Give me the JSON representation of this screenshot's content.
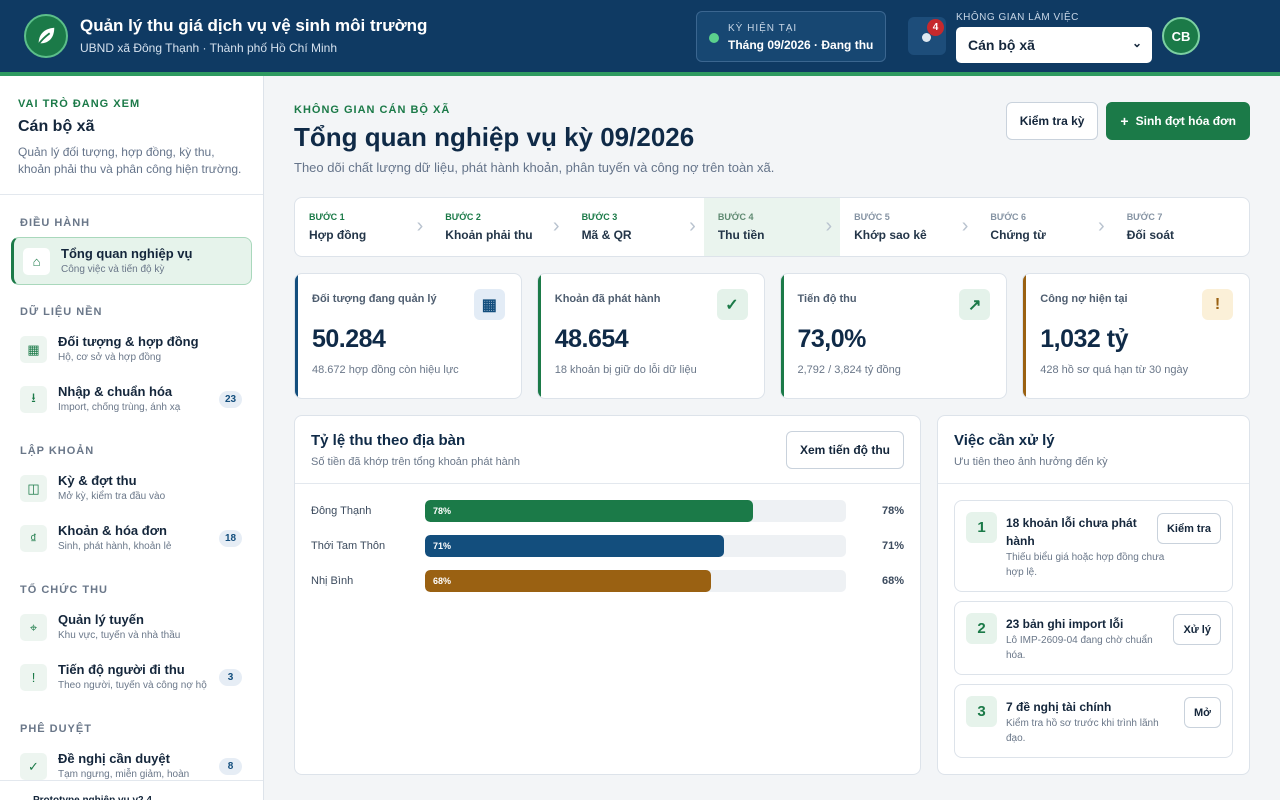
{
  "header": {
    "title": "Quản lý thu giá dịch vụ vệ sinh môi trường",
    "subtitle": "UBND xã Đông Thạnh · Thành phố Hồ Chí Minh",
    "period": {
      "label": "KỲ HIỆN TẠI",
      "value": "Tháng 09/2026 · Đang thu"
    },
    "notifications": 4,
    "workspace": {
      "label": "KHÔNG GIAN LÀM VIỆC",
      "selected": "Cán bộ xã"
    },
    "avatar": "CB"
  },
  "sidebar": {
    "role": {
      "label": "VAI TRÒ ĐANG XEM",
      "name": "Cán bộ xã",
      "description": "Quản lý đối tượng, hợp đồng, kỳ thu, khoản phải thu và phân công hiện trường."
    },
    "sections": [
      {
        "title": "ĐIỀU HÀNH",
        "items": [
          {
            "icon": "⌂",
            "title": "Tổng quan nghiệp vụ",
            "subtitle": "Công việc và tiến độ kỳ",
            "active": true
          }
        ]
      },
      {
        "title": "DỮ LIỆU NỀN",
        "items": [
          {
            "icon": "▦",
            "title": "Đối tượng & hợp đồng",
            "subtitle": "Hộ, cơ sở và hợp đồng"
          },
          {
            "icon": "⭳",
            "title": "Nhập & chuẩn hóa",
            "subtitle": "Import, chống trùng, ánh xạ",
            "badge": 23
          }
        ]
      },
      {
        "title": "LẬP KHOẢN",
        "items": [
          {
            "icon": "◫",
            "title": "Kỳ & đợt thu",
            "subtitle": "Mở kỳ, kiểm tra đầu vào"
          },
          {
            "icon": "₫",
            "title": "Khoản & hóa đơn",
            "subtitle": "Sinh, phát hành, khoản lẻ",
            "badge": 18
          }
        ]
      },
      {
        "title": "TỔ CHỨC THU",
        "items": [
          {
            "icon": "⌖",
            "title": "Quản lý tuyến",
            "subtitle": "Khu vực, tuyến và nhà thầu"
          },
          {
            "icon": "!",
            "title": "Tiến độ người đi thu",
            "subtitle": "Theo người, tuyến và công nợ hộ",
            "badge": 3
          }
        ]
      },
      {
        "title": "PHÊ DUYỆT",
        "items": [
          {
            "icon": "✓",
            "title": "Đề nghị cần duyệt",
            "subtitle": "Tạm ngưng, miễn giảm, hoàn",
            "badge": 8
          }
        ]
      }
    ],
    "footer": "Prototype nghiệp vụ v2.4"
  },
  "main": {
    "eyebrow": "KHÔNG GIAN CÁN BỘ XÃ",
    "title": "Tổng quan nghiệp vụ kỳ 09/2026",
    "subtitle": "Theo dõi chất lượng dữ liệu, phát hành khoản, phân tuyến và công nợ trên toàn xã.",
    "actions": [
      {
        "label": "Kiểm tra kỳ"
      },
      {
        "icon": "+",
        "label": "Sinh đợt hóa đơn",
        "primary": true
      }
    ],
    "steps": [
      {
        "step": "BƯỚC 1",
        "name": "Hợp đồng",
        "state": "done"
      },
      {
        "step": "BƯỚC 2",
        "name": "Khoản phải thu",
        "state": "done"
      },
      {
        "step": "BƯỚC 3",
        "name": "Mã & QR",
        "state": "done"
      },
      {
        "step": "BƯỚC 4",
        "name": "Thu tiền",
        "state": "active"
      },
      {
        "step": "BƯỚC 5",
        "name": "Khớp sao kê",
        "state": "todo"
      },
      {
        "step": "BƯỚC 6",
        "name": "Chứng từ",
        "state": "todo"
      },
      {
        "step": "BƯỚC 7",
        "name": "Đối soát",
        "state": "todo"
      }
    ],
    "kpis": [
      {
        "label": "Đối tượng đang quản lý",
        "value": "50.284",
        "note": "48.672 hợp đồng còn hiệu lực",
        "icon": "▦",
        "color": "#134e7d",
        "icon_bg": "#e3ecf6"
      },
      {
        "label": "Khoản đã phát hành",
        "value": "48.654",
        "note": "18 khoản bị giữ do lỗi dữ liệu",
        "icon": "✓",
        "color": "#1b7a48",
        "icon_bg": "#e4f2ea"
      },
      {
        "label": "Tiến độ thu",
        "value": "73,0%",
        "note": "2,792 / 3,824 tỷ đồng",
        "icon": "↗",
        "color": "#1b7a48",
        "icon_bg": "#e4f2ea"
      },
      {
        "label": "Công nợ hiện tại",
        "value": "1,032 tỷ",
        "note": "428 hồ sơ quá hạn từ 30 ngày",
        "icon": "!",
        "color": "#9a6112",
        "icon_bg": "#fbf0d8"
      }
    ],
    "collection": {
      "title": "Tỷ lệ thu theo địa bàn",
      "subtitle": "Số tiền đã khớp trên tổng khoản phát hành",
      "button": "Xem tiến độ thu",
      "xlim": [
        0,
        100
      ],
      "categories": [
        "Đông Thạnh",
        "Thới Tam Thôn",
        "Nhị Bình"
      ],
      "values": [
        78,
        71,
        68
      ],
      "value_labels": [
        "78%",
        "71%",
        "68%"
      ],
      "colors": [
        "#1b7a48",
        "#134e7d",
        "#9a6112"
      ]
    },
    "tasks": {
      "title": "Việc cần xử lý",
      "subtitle": "Ưu tiên theo ảnh hưởng đến kỳ",
      "items": [
        {
          "number": 1,
          "title": "18 khoản lỗi chưa phát hành",
          "description": "Thiếu biểu giá hoặc hợp đồng chưa hợp lệ.",
          "button": "Kiểm tra"
        },
        {
          "number": 2,
          "title": "23 bản ghi import lỗi",
          "description": "Lô IMP-2609-04 đang chờ chuẩn hóa.",
          "button": "Xử lý"
        },
        {
          "number": 3,
          "title": "7 đề nghị tài chính",
          "description": "Kiểm tra hồ sơ trước khi trình lãnh đạo.",
          "button": "Mở"
        }
      ]
    }
  }
}
